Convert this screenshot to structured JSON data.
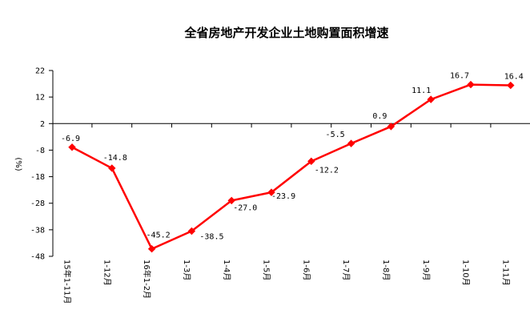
{
  "chart_data": {
    "type": "line",
    "title": "全省房地产开发企业土地购置面积增速",
    "ylabel": "(%)",
    "categories": [
      "15年1-11月",
      "1-12月",
      "16年1-2月",
      "1-3月",
      "1-4月",
      "1-5月",
      "1-6月",
      "1-7月",
      "1-8月",
      "1-9月",
      "1-10月",
      "1-11月"
    ],
    "values": [
      -6.9,
      -14.8,
      -45.2,
      -38.5,
      -27.0,
      -23.9,
      -12.2,
      -5.5,
      0.9,
      11.1,
      16.7,
      16.4
    ],
    "value_labels": [
      "-6.9",
      "-14.8",
      "-45.2",
      "-38.5",
      "-27.0",
      "-23.9",
      "-12.2",
      "-5.5",
      "0.9",
      "11.1",
      "16.7",
      "16.4"
    ],
    "yticks": [
      "22",
      "12",
      "2",
      "-8",
      "-18",
      "-28",
      "-38",
      "-48"
    ],
    "ylim": [
      -48,
      22
    ],
    "x_axis_crosses_at": 2,
    "grid": false,
    "legend": "none",
    "line_color": "#ff0000",
    "axis_color": "#000000"
  }
}
